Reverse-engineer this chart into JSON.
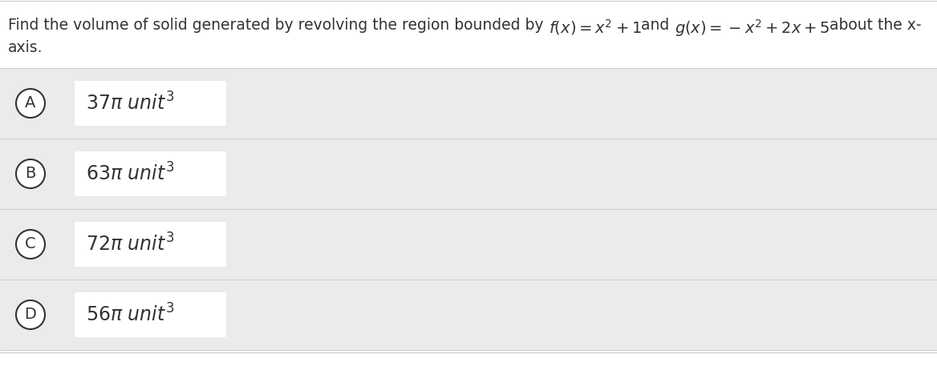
{
  "white_bg": "#ffffff",
  "light_gray_bg": "#f0f0f0",
  "row_bg": "#ebebeb",
  "separator_color": "#cccccc",
  "circle_edge_color": "#333333",
  "circle_face_color": "#ffffff",
  "answer_box_color": "#ffffff",
  "text_color": "#333333",
  "font_size_question": 13.5,
  "font_size_options": 15,
  "font_size_label": 13,
  "options": [
    {
      "label": "A",
      "value": "37",
      "coeff": "37"
    },
    {
      "label": "B",
      "value": "63",
      "coeff": "63"
    },
    {
      "label": "C",
      "value": "72",
      "coeff": "72"
    },
    {
      "label": "D",
      "value": "56",
      "coeff": "56"
    }
  ],
  "q_plain": "Find the volume of solid generated by revolving the region bounded by ",
  "q_fx": "f(x) = x² + 1",
  "q_and": "and ",
  "q_gx": "g(x) = − x² + 2x + 5",
  "q_about": "about the x-",
  "q_axis": "axis."
}
